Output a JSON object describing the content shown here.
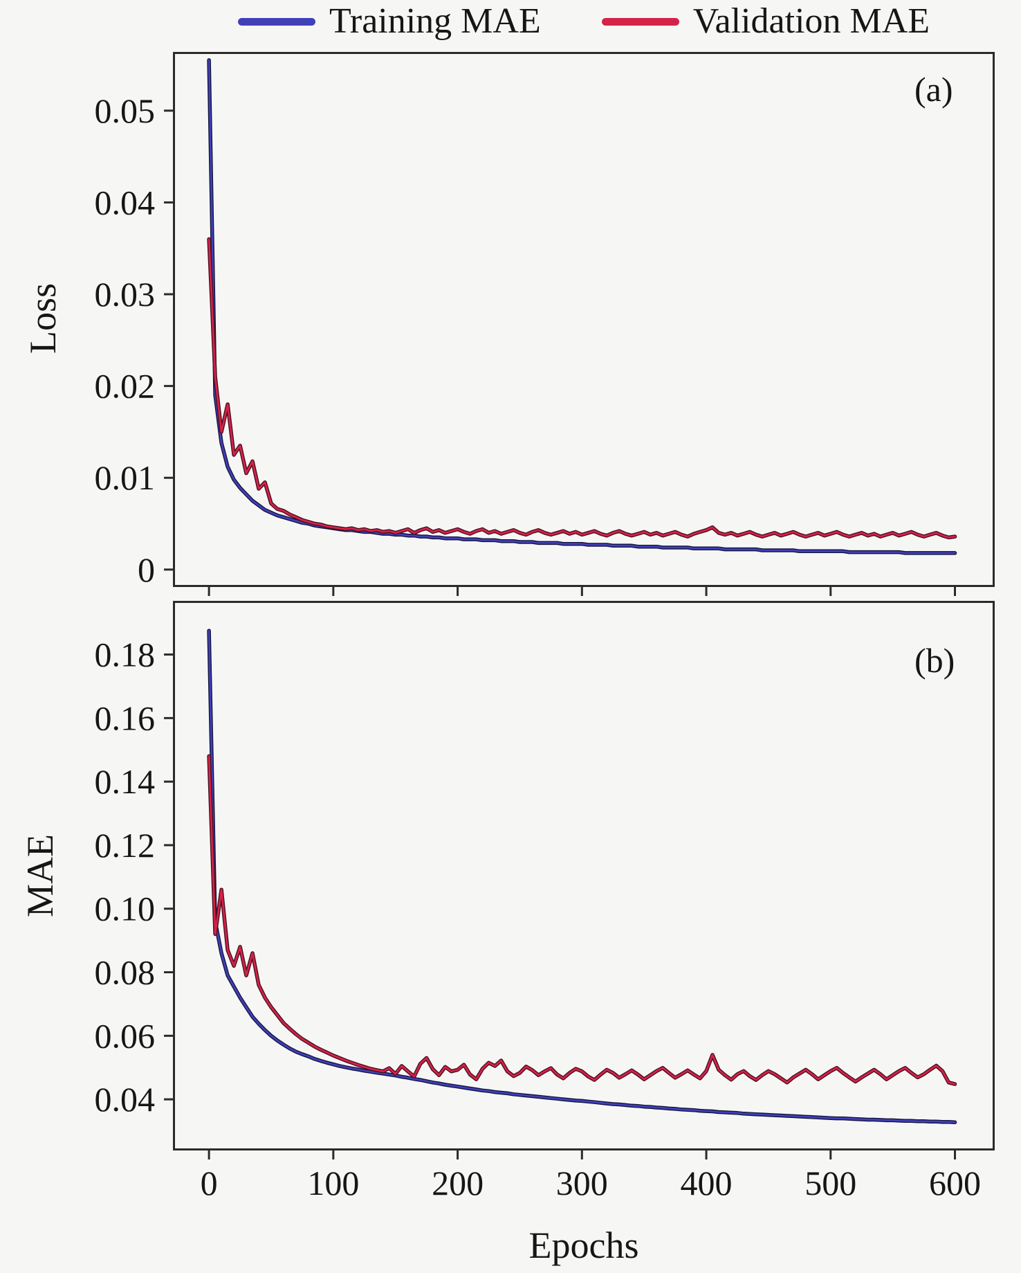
{
  "figure": {
    "background": "#f6f6f5",
    "axis_color": "#2b2b2b"
  },
  "legend": {
    "items": [
      {
        "label": "Training MAE",
        "color": "#4140b8"
      },
      {
        "label": "Validation MAE",
        "color": "#d52249"
      }
    ]
  },
  "chart_data": [
    {
      "type": "line",
      "panel_label": "(a)",
      "ylabel": "Loss",
      "xlabel": "",
      "legend_position": "top-center",
      "grid": false,
      "xlim": [
        -29,
        632
      ],
      "ylim": [
        -0.0019,
        0.0564
      ],
      "xticks": [
        0,
        100,
        200,
        300,
        400,
        500,
        600
      ],
      "xtick_labels": [
        "",
        "",
        "",
        "",
        "",
        "",
        ""
      ],
      "yticks": [
        0,
        0.01,
        0.02,
        0.03,
        0.04,
        0.05
      ],
      "ytick_labels": [
        "0",
        "0.01",
        "0.02",
        "0.03",
        "0.04",
        "0.05"
      ],
      "series": [
        {
          "name": "Training MAE",
          "color": "#4140b8",
          "edge_color": "#13133a",
          "x_start": 0,
          "x_step": 5,
          "y": [
            0.0555,
            0.019,
            0.0138,
            0.0112,
            0.0098,
            0.0089,
            0.0082,
            0.0075,
            0.007,
            0.0065,
            0.0062,
            0.0059,
            0.0057,
            0.0055,
            0.0053,
            0.0051,
            0.005,
            0.0048,
            0.0047,
            0.0046,
            0.0045,
            0.0044,
            0.0043,
            0.0043,
            0.0042,
            0.0041,
            0.0041,
            0.004,
            0.0039,
            0.0039,
            0.0038,
            0.0038,
            0.0037,
            0.0037,
            0.0036,
            0.0036,
            0.0035,
            0.0035,
            0.0034,
            0.0034,
            0.0034,
            0.0033,
            0.0033,
            0.0033,
            0.0032,
            0.0032,
            0.0032,
            0.0031,
            0.0031,
            0.0031,
            0.003,
            0.003,
            0.003,
            0.0029,
            0.0029,
            0.0029,
            0.0029,
            0.0028,
            0.0028,
            0.0028,
            0.0028,
            0.0027,
            0.0027,
            0.0027,
            0.0027,
            0.0026,
            0.0026,
            0.0026,
            0.0026,
            0.0025,
            0.0025,
            0.0025,
            0.0025,
            0.0024,
            0.0024,
            0.0024,
            0.0024,
            0.0024,
            0.0023,
            0.0023,
            0.0023,
            0.0023,
            0.0023,
            0.0022,
            0.0022,
            0.0022,
            0.0022,
            0.0022,
            0.0022,
            0.0021,
            0.0021,
            0.0021,
            0.0021,
            0.0021,
            0.0021,
            0.002,
            0.002,
            0.002,
            0.002,
            0.002,
            0.002,
            0.002,
            0.002,
            0.0019,
            0.0019,
            0.0019,
            0.0019,
            0.0019,
            0.0019,
            0.0019,
            0.0019,
            0.0019,
            0.0018,
            0.0018,
            0.0018,
            0.0018,
            0.0018,
            0.0018,
            0.0018,
            0.0018,
            0.0018
          ]
        },
        {
          "name": "Validation MAE",
          "color": "#d52249",
          "edge_color": "#44101e",
          "x_start": 0,
          "x_step": 5,
          "y": [
            0.036,
            0.021,
            0.015,
            0.018,
            0.0125,
            0.0135,
            0.0105,
            0.0118,
            0.0088,
            0.0095,
            0.0072,
            0.0066,
            0.0064,
            0.006,
            0.0057,
            0.0054,
            0.0052,
            0.005,
            0.0049,
            0.0047,
            0.0046,
            0.0045,
            0.0044,
            0.0045,
            0.0043,
            0.0044,
            0.0042,
            0.0043,
            0.0041,
            0.0042,
            0.004,
            0.0042,
            0.0044,
            0.004,
            0.0043,
            0.0045,
            0.0041,
            0.0043,
            0.004,
            0.0042,
            0.0044,
            0.0041,
            0.0039,
            0.0042,
            0.0044,
            0.004,
            0.0042,
            0.0039,
            0.0041,
            0.0043,
            0.004,
            0.0038,
            0.0041,
            0.0043,
            0.004,
            0.0038,
            0.004,
            0.0042,
            0.0039,
            0.0041,
            0.0038,
            0.004,
            0.0042,
            0.0039,
            0.0037,
            0.004,
            0.0042,
            0.0039,
            0.0037,
            0.0039,
            0.0041,
            0.0038,
            0.004,
            0.0037,
            0.0039,
            0.0041,
            0.0038,
            0.0036,
            0.0039,
            0.0041,
            0.0043,
            0.0046,
            0.004,
            0.0038,
            0.004,
            0.0037,
            0.0039,
            0.0041,
            0.0038,
            0.0036,
            0.0038,
            0.004,
            0.0037,
            0.0039,
            0.0041,
            0.0038,
            0.0036,
            0.0038,
            0.004,
            0.0037,
            0.0039,
            0.0041,
            0.0038,
            0.0036,
            0.0038,
            0.004,
            0.0037,
            0.0039,
            0.0036,
            0.0038,
            0.004,
            0.0037,
            0.0039,
            0.0041,
            0.0038,
            0.0036,
            0.0038,
            0.004,
            0.0037,
            0.0035,
            0.0036
          ]
        }
      ]
    },
    {
      "type": "line",
      "panel_label": "(b)",
      "ylabel": "MAE",
      "xlabel": "Epochs",
      "legend_position": "top-center",
      "grid": false,
      "xlim": [
        -29,
        632
      ],
      "ylim": [
        0.0239,
        0.1969
      ],
      "xticks": [
        0,
        100,
        200,
        300,
        400,
        500,
        600
      ],
      "xtick_labels": [
        "0",
        "100",
        "200",
        "300",
        "400",
        "500",
        "600"
      ],
      "yticks": [
        0.04,
        0.06,
        0.08,
        0.1,
        0.12,
        0.14,
        0.16,
        0.18
      ],
      "ytick_labels": [
        "0.04",
        "0.06",
        "0.08",
        "0.10",
        "0.12",
        "0.14",
        "0.16",
        "0.18"
      ],
      "series": [
        {
          "name": "Training MAE",
          "color": "#4140b8",
          "edge_color": "#13133a",
          "x_start": 0,
          "x_step": 5,
          "y": [
            0.1875,
            0.096,
            0.086,
            0.079,
            0.0755,
            0.072,
            0.069,
            0.066,
            0.0638,
            0.0618,
            0.06,
            0.0585,
            0.0572,
            0.056,
            0.055,
            0.0542,
            0.0535,
            0.0527,
            0.0521,
            0.0515,
            0.051,
            0.0505,
            0.0501,
            0.0497,
            0.0494,
            0.049,
            0.0487,
            0.0484,
            0.0481,
            0.0478,
            0.0475,
            0.0471,
            0.0468,
            0.0464,
            0.0461,
            0.0457,
            0.0453,
            0.045,
            0.0446,
            0.0443,
            0.044,
            0.0437,
            0.0434,
            0.0431,
            0.0428,
            0.0426,
            0.0423,
            0.0421,
            0.0419,
            0.0416,
            0.0414,
            0.0412,
            0.041,
            0.0408,
            0.0406,
            0.0404,
            0.0402,
            0.04,
            0.0398,
            0.0396,
            0.0395,
            0.0393,
            0.0391,
            0.0389,
            0.0387,
            0.0385,
            0.0384,
            0.0382,
            0.038,
            0.0379,
            0.0377,
            0.0376,
            0.0374,
            0.0373,
            0.0371,
            0.037,
            0.0368,
            0.0367,
            0.0366,
            0.0364,
            0.0363,
            0.0362,
            0.036,
            0.0359,
            0.0358,
            0.0357,
            0.0355,
            0.0354,
            0.0353,
            0.0352,
            0.0351,
            0.035,
            0.0349,
            0.0348,
            0.0347,
            0.0346,
            0.0345,
            0.0344,
            0.0343,
            0.0342,
            0.0341,
            0.034,
            0.034,
            0.0339,
            0.0338,
            0.0337,
            0.0336,
            0.0336,
            0.0335,
            0.0334,
            0.0334,
            0.0333,
            0.0332,
            0.0332,
            0.0331,
            0.0331,
            0.033,
            0.033,
            0.0329,
            0.0329,
            0.0328
          ]
        },
        {
          "name": "Validation MAE",
          "color": "#d52249",
          "edge_color": "#44101e",
          "x_start": 0,
          "x_step": 5,
          "y": [
            0.148,
            0.092,
            0.106,
            0.087,
            0.082,
            0.088,
            0.079,
            0.086,
            0.076,
            0.072,
            0.069,
            0.0665,
            0.064,
            0.0622,
            0.0605,
            0.059,
            0.0578,
            0.0566,
            0.0556,
            0.0547,
            0.0538,
            0.053,
            0.0522,
            0.0515,
            0.0508,
            0.0502,
            0.0496,
            0.0492,
            0.0488,
            0.0498,
            0.048,
            0.0505,
            0.0488,
            0.0472,
            0.0512,
            0.053,
            0.0495,
            0.0476,
            0.0502,
            0.0488,
            0.0493,
            0.0509,
            0.0478,
            0.0463,
            0.0496,
            0.0515,
            0.0505,
            0.0522,
            0.0488,
            0.0473,
            0.0483,
            0.0503,
            0.0492,
            0.0476,
            0.0488,
            0.0498,
            0.0478,
            0.0466,
            0.0483,
            0.0496,
            0.0488,
            0.0472,
            0.0461,
            0.0478,
            0.0493,
            0.0483,
            0.0468,
            0.0479,
            0.0491,
            0.0478,
            0.0463,
            0.0476,
            0.0489,
            0.0499,
            0.0483,
            0.0468,
            0.0479,
            0.0491,
            0.0478,
            0.0466,
            0.0489,
            0.054,
            0.0493,
            0.0476,
            0.0462,
            0.0479,
            0.0489,
            0.0473,
            0.0461,
            0.0476,
            0.0489,
            0.0479,
            0.0466,
            0.0453,
            0.0469,
            0.0481,
            0.0493,
            0.0479,
            0.0463,
            0.0476,
            0.0489,
            0.0499,
            0.0483,
            0.0469,
            0.0456,
            0.0469,
            0.0481,
            0.0493,
            0.0479,
            0.0463,
            0.0476,
            0.0489,
            0.0499,
            0.0483,
            0.0469,
            0.0479,
            0.0493,
            0.0506,
            0.0489,
            0.0453,
            0.0448
          ]
        }
      ]
    }
  ]
}
